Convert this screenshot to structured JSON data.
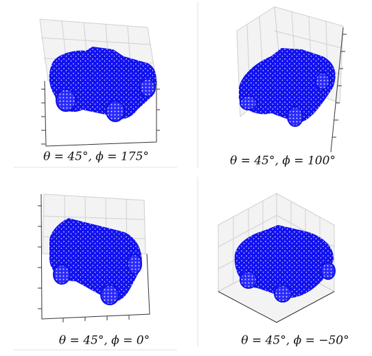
{
  "panels": [
    {
      "caption": "θ = 45°, ϕ = 175°"
    },
    {
      "caption": "θ = 45°, ϕ = 100°"
    },
    {
      "caption": "θ = 45°, ϕ = 0°"
    },
    {
      "caption": "θ = 45°, ϕ = −50°"
    }
  ]
}
